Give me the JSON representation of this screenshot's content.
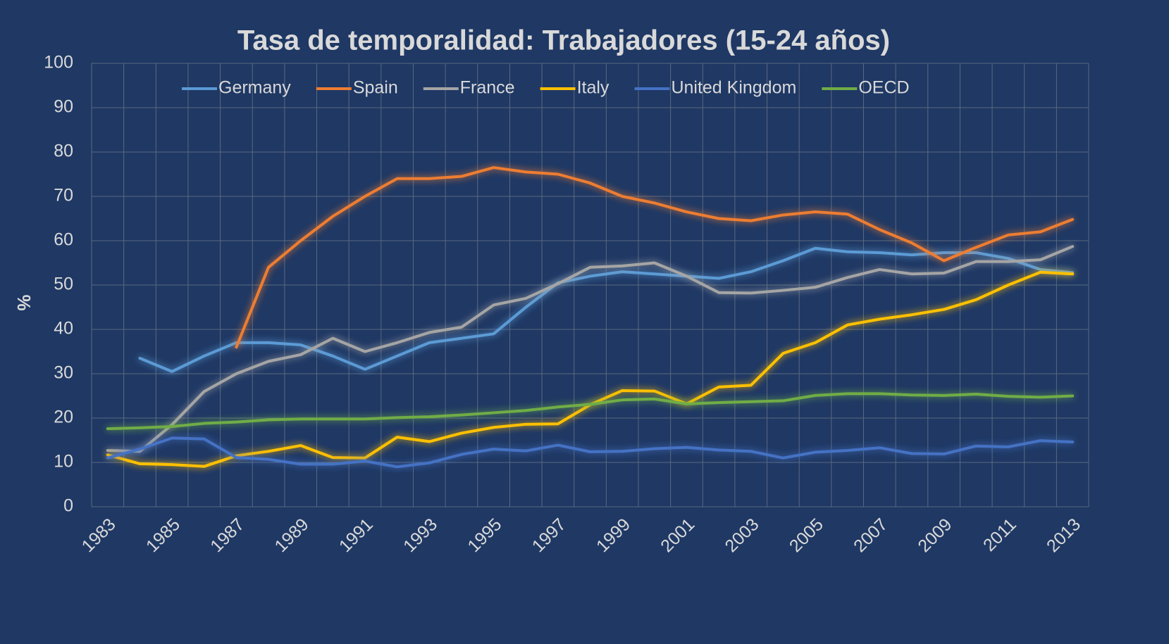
{
  "chart_data": {
    "type": "line",
    "title": "Tasa de temporalidad: Trabajadores (15-24 años)",
    "y_label": "%",
    "categories": [
      "1983",
      null,
      "1985",
      null,
      "1987",
      null,
      "1989",
      null,
      "1991",
      null,
      "1993",
      null,
      "1995",
      null,
      "1997",
      null,
      "1999",
      null,
      "2001",
      null,
      "2003",
      null,
      "2005",
      null,
      "2007",
      null,
      "2009",
      null,
      "2011",
      null,
      "2013"
    ],
    "series": [
      {
        "name": "Germany",
        "color": "#5b9bd5",
        "values": [
          null,
          33.5,
          30.5,
          34,
          37,
          37,
          36.5,
          34,
          31,
          34,
          37,
          38,
          39,
          45,
          50.5,
          52,
          53,
          52.5,
          52,
          51.5,
          53,
          55.5,
          58.3,
          57.5,
          57.3,
          56.8,
          57.3,
          57.3,
          56,
          53.5,
          52.8
        ]
      },
      {
        "name": "Spain",
        "color": "#ed7d31",
        "values": [
          null,
          null,
          null,
          null,
          36,
          54,
          60,
          65.5,
          70,
          74,
          74,
          74.5,
          76.5,
          75.5,
          75,
          73,
          70,
          68.5,
          66.5,
          65,
          64.5,
          65.8,
          66.5,
          66,
          62.5,
          59.5,
          55.5,
          58.5,
          61.3,
          62,
          64.8
        ]
      },
      {
        "name": "France",
        "color": "#a5a5a5",
        "values": [
          12.7,
          12.5,
          18.5,
          26,
          30,
          32.8,
          34.3,
          38,
          35,
          37,
          39.3,
          40.5,
          45.5,
          47,
          50.3,
          54,
          54.3,
          55,
          52,
          48.3,
          48.2,
          48.8,
          49.5,
          51.7,
          53.5,
          52.5,
          52.7,
          55.3,
          55.3,
          55.7,
          58.7
        ]
      },
      {
        "name": "Italy",
        "color": "#ffc000",
        "values": [
          11.7,
          9.7,
          9.5,
          9.1,
          11.5,
          12.5,
          13.8,
          11.1,
          11,
          15.7,
          14.7,
          16.6,
          17.9,
          18.6,
          18.7,
          23,
          26.2,
          26.1,
          23.2,
          27,
          27.4,
          34.6,
          37,
          41,
          42.3,
          43.3,
          44.5,
          46.7,
          50,
          52.9,
          52.5
        ]
      },
      {
        "name": "United Kingdom",
        "color": "#4472c4",
        "values": [
          11,
          13,
          15.5,
          15.3,
          11.1,
          10.7,
          9.6,
          9.6,
          10.3,
          9,
          9.9,
          11.8,
          13,
          12.6,
          13.9,
          12.4,
          12.5,
          13.1,
          13.4,
          12.8,
          12.5,
          11,
          12.3,
          12.7,
          13.3,
          12,
          11.9,
          13.7,
          13.5,
          14.9,
          14.6
        ]
      },
      {
        "name": "OECD",
        "color": "#70ad47",
        "values": [
          17.6,
          17.8,
          18.1,
          18.8,
          19.1,
          19.6,
          19.8,
          19.8,
          19.8,
          20.1,
          20.3,
          20.7,
          21.2,
          21.7,
          22.5,
          23.1,
          24.1,
          24.3,
          23.2,
          23.5,
          23.7,
          23.9,
          25.1,
          25.5,
          25.5,
          25.2,
          25.1,
          25.4,
          24.9,
          24.7,
          25.0
        ]
      }
    ],
    "ylim": [
      0,
      100
    ],
    "yticks": [
      0,
      10,
      20,
      30,
      40,
      50,
      60,
      70,
      80,
      90,
      100
    ],
    "grid": true,
    "legend": "top"
  }
}
